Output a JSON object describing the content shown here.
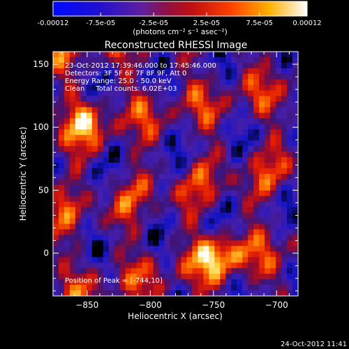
{
  "colorbar": {
    "tick_labels": [
      "-0.00012",
      "-7.5e-05",
      "-2.5e-05",
      "2.5e-05",
      "7.5e-05",
      "0.00012"
    ],
    "unit_label": "(photons cm⁻² s⁻¹ asec⁻²)",
    "range": [
      -0.00012,
      0.00012
    ]
  },
  "chart_data": {
    "type": "heatmap",
    "title": "Reconstructed RHESSI Image",
    "xlabel": "Heliocentric X (arcsec)",
    "ylabel": "Heliocentric Y (arcsec)",
    "xlim": [
      -877,
      -683
    ],
    "ylim": [
      -34,
      160
    ],
    "x_ticks": [
      -850,
      -800,
      -750,
      -700
    ],
    "y_ticks": [
      0,
      50,
      100,
      150
    ],
    "colormap": "dark-blue → purple → red → orange → yellow → white",
    "annotations": [
      "23-Oct-2012 17:39:46.000 to 17:45:46.000",
      "Detectors: 3F 5F 6F 7F 8F 9F, Att 0",
      "Energy Range: 25.0 - 50.0 keV",
      "Clean     Total counts: 6.02E+03"
    ],
    "peak_label": "Position of Peak = [-744,10]",
    "peak_position": [
      -744,
      10
    ]
  },
  "footer": {
    "timestamp": "24-Oct-2012 11:41"
  },
  "colors": {
    "low": "#0000ff",
    "mid": "#5020a0",
    "high": "#ff6000",
    "max": "#ffffff"
  }
}
